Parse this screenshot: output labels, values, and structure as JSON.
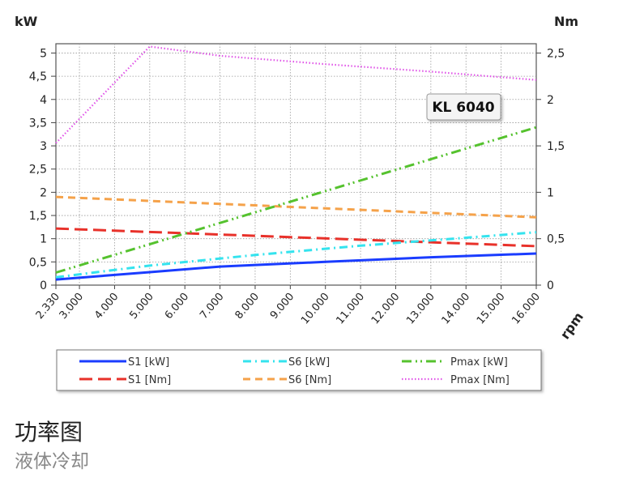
{
  "caption": {
    "title": "功率图",
    "subtitle": "液体冷却"
  },
  "chart_data": {
    "type": "line",
    "model_label": "KL 6040",
    "y_left_label": "kW",
    "y_right_label": "Nm",
    "x_label": "rpm",
    "x_ticks": [
      2330,
      3000,
      4000,
      5000,
      6000,
      7000,
      8000,
      9000,
      10000,
      11000,
      12000,
      13000,
      14000,
      15000,
      16000
    ],
    "x_tick_labels": [
      "2.330",
      "3.000",
      "4.000",
      "5.000",
      "6.000",
      "7.000",
      "8.000",
      "9.000",
      "10.000",
      "11.000",
      "12.000",
      "13.000",
      "14.000",
      "15.000",
      "16.000"
    ],
    "y_left_ticks": [
      0,
      0.5,
      1,
      1.5,
      2,
      2.5,
      3,
      3.5,
      4,
      4.5,
      5
    ],
    "y_left_tick_labels": [
      "0",
      "0,5",
      "1",
      "1,5",
      "2",
      "2,5",
      "3",
      "3,5",
      "4",
      "4,5",
      "5"
    ],
    "y_left_lim": [
      0,
      5.2
    ],
    "y_right_ticks": [
      0,
      0.5,
      1,
      1.5,
      2,
      2.5
    ],
    "y_right_tick_labels": [
      "0",
      "0,5",
      "1",
      "1,5",
      "2",
      "2,5"
    ],
    "y_right_lim": [
      0,
      2.6
    ],
    "grid": true,
    "legend_position": "bottom",
    "series": [
      {
        "name": "S1 [kW]",
        "axis": "left",
        "color": "#1a3cff",
        "dash": "solid",
        "x": [
          2330,
          5000,
          7000,
          10000,
          13000,
          16000
        ],
        "y": [
          0.12,
          0.28,
          0.4,
          0.5,
          0.6,
          0.68
        ]
      },
      {
        "name": "S1 [Nm]",
        "axis": "right",
        "color": "#e8312a",
        "dash": "longdash",
        "x": [
          2330,
          16000
        ],
        "y": [
          0.61,
          0.42
        ]
      },
      {
        "name": "S6 [kW]",
        "axis": "left",
        "color": "#34e3ee",
        "dash": "dashdot",
        "x": [
          2330,
          5000,
          8000,
          11000,
          14000,
          16000
        ],
        "y": [
          0.17,
          0.42,
          0.65,
          0.85,
          1.02,
          1.14
        ]
      },
      {
        "name": "S6 [Nm]",
        "axis": "right",
        "color": "#f5a24a",
        "dash": "dash",
        "x": [
          2330,
          16000
        ],
        "y": [
          0.95,
          0.73
        ]
      },
      {
        "name": "Pmax [kW]",
        "axis": "left",
        "color": "#55c22e",
        "dash": "dashdotdot",
        "x": [
          2330,
          16000
        ],
        "y": [
          0.27,
          3.4
        ]
      },
      {
        "name": "Pmax [Nm]",
        "axis": "right",
        "color": "#e055e8",
        "dash": "dotted",
        "x": [
          2330,
          5000,
          7000,
          10000,
          13000,
          16000
        ],
        "y": [
          1.53,
          2.57,
          2.47,
          2.38,
          2.3,
          2.21
        ]
      }
    ]
  }
}
